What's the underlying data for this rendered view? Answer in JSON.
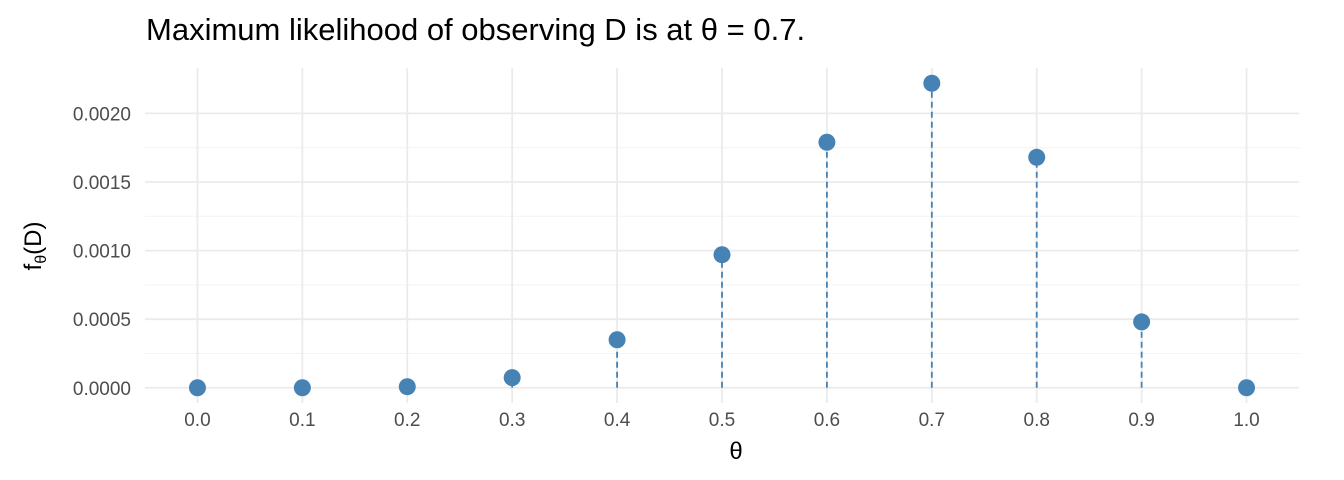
{
  "chart_data": {
    "type": "scatter",
    "title": "Maximum likelihood of observing D is at θ = 0.7.",
    "xlabel": "θ",
    "ylabel_main": "f",
    "ylabel_sub": "θ",
    "ylabel_tail": "(D)",
    "x": [
      0.0,
      0.1,
      0.2,
      0.3,
      0.4,
      0.5,
      0.6,
      0.7,
      0.8,
      0.9,
      1.0
    ],
    "values": [
      0.0,
      9e-10,
      7.8e-06,
      7.4e-05,
      0.00035,
      0.00097,
      0.00179,
      0.00222,
      0.00168,
      0.00048,
      0.0
    ],
    "xticks": [
      "0.0",
      "0.1",
      "0.2",
      "0.3",
      "0.4",
      "0.5",
      "0.6",
      "0.7",
      "0.8",
      "0.9",
      "1.0"
    ],
    "yticks": [
      {
        "value": 0.0,
        "label": "0.0000"
      },
      {
        "value": 0.0005,
        "label": "0.0005"
      },
      {
        "value": 0.001,
        "label": "0.0010"
      },
      {
        "value": 0.0015,
        "label": "0.0015"
      },
      {
        "value": 0.002,
        "label": "0.0020"
      }
    ],
    "xlim": [
      -0.05,
      1.05
    ],
    "ylim": [
      -0.000111,
      0.002331
    ],
    "grid": true,
    "point_color": "#4682b4",
    "stem_color": "#4682b4",
    "stem_style": "dashed"
  }
}
